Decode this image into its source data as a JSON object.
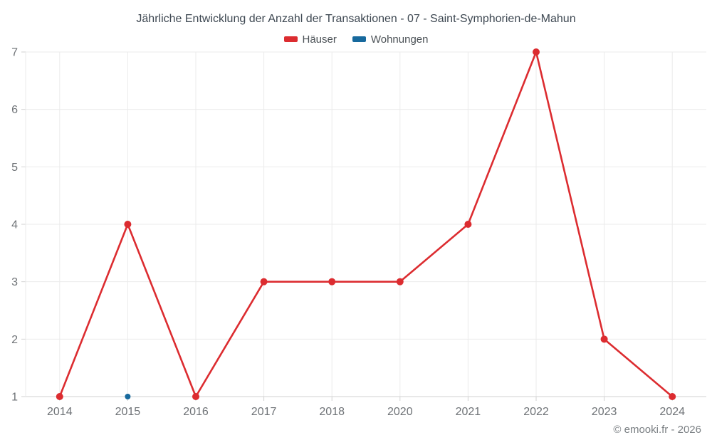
{
  "chart_data": {
    "type": "line",
    "title": "Jährliche Entwicklung der Anzahl der Transaktionen - 07 - Saint-Symphorien-de-Mahun",
    "categories": [
      "2014",
      "2015",
      "2016",
      "2017",
      "2018",
      "2020",
      "2021",
      "2022",
      "2023",
      "2024"
    ],
    "series": [
      {
        "name": "Häuser",
        "color": "#dc2c30",
        "marker_radius": 5,
        "values": [
          1,
          4,
          1,
          3,
          3,
          3,
          4,
          7,
          2,
          1
        ]
      },
      {
        "name": "Wohnungen",
        "color": "#17699d",
        "marker_radius": 4,
        "values": [
          null,
          1,
          null,
          null,
          null,
          null,
          null,
          null,
          null,
          null
        ]
      }
    ],
    "xlabel": "",
    "ylabel": "",
    "ylim": [
      1,
      7
    ],
    "yticks": [
      1,
      2,
      3,
      4,
      5,
      6,
      7
    ],
    "grid": true,
    "grid_color": "#ebebeb",
    "axis_color": "#d2d2d2",
    "legend_position": "top"
  },
  "footer": {
    "copyright": "© emooki.fr - 2026"
  }
}
